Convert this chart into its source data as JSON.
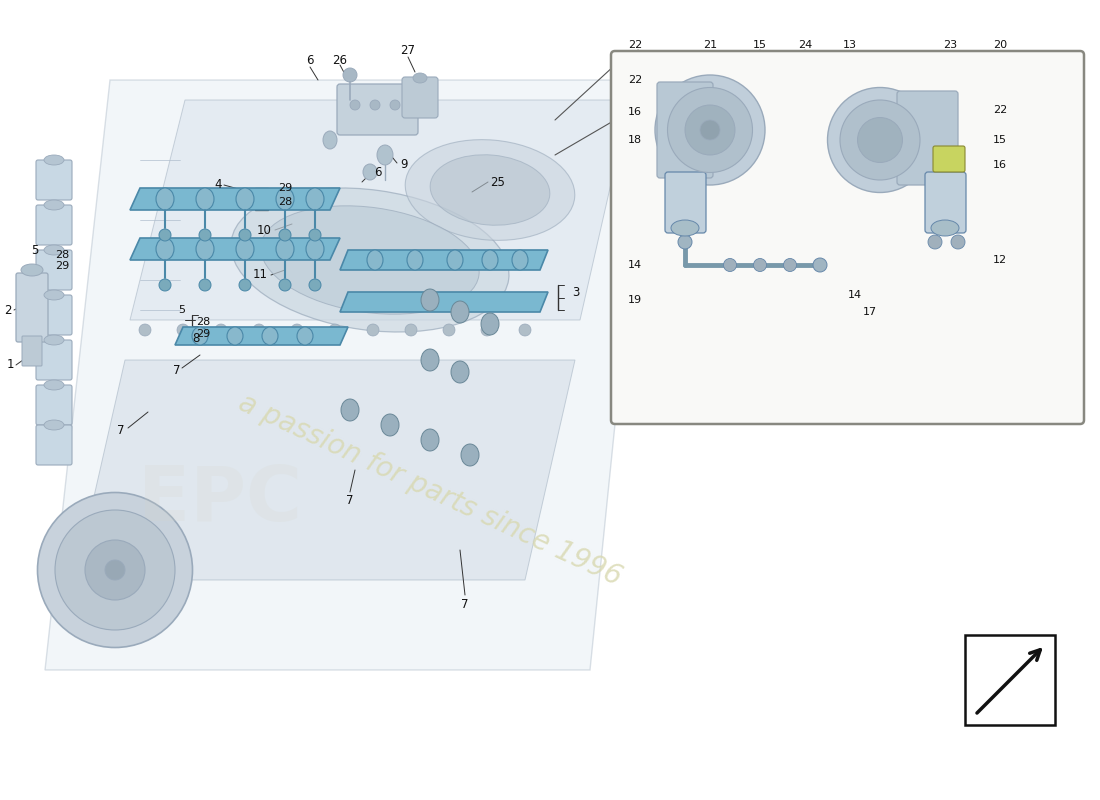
{
  "bg_color": "#ffffff",
  "engine_body_color": "#dce6ee",
  "engine_edge_color": "#9aaabb",
  "fuel_rail_color": "#7ab8d0",
  "fuel_rail_edge": "#4a88a8",
  "injector_color": "#88b8cc",
  "coil_color": "#c8d8e4",
  "coil_edge": "#8899aa",
  "inset_bg": "#f9f9f7",
  "inset_edge": "#888880",
  "part_color_dark": "#a8bece",
  "part_color_mid": "#bccdd8",
  "part_color_light": "#d0dfe8",
  "watermark_text": "a passion for parts since 1996",
  "arrow_color": "#111111",
  "label_color": "#111111",
  "line_color": "#333333"
}
